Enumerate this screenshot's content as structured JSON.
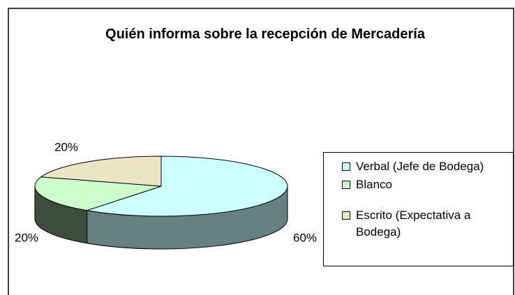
{
  "chart_data": {
    "type": "pie3d",
    "title": "Quién informa sobre la recepción de Mercadería",
    "categories": [
      "Verbal (Jefe de Bodega)",
      "Blanco",
      "Escrito (Expectativa a Bodega)"
    ],
    "values": [
      60,
      20,
      20
    ],
    "value_labels": [
      "60%",
      "20%",
      "20%"
    ],
    "colors": [
      "#ccffff",
      "#ccffcc",
      "#ede6c4"
    ],
    "legend": "right"
  }
}
